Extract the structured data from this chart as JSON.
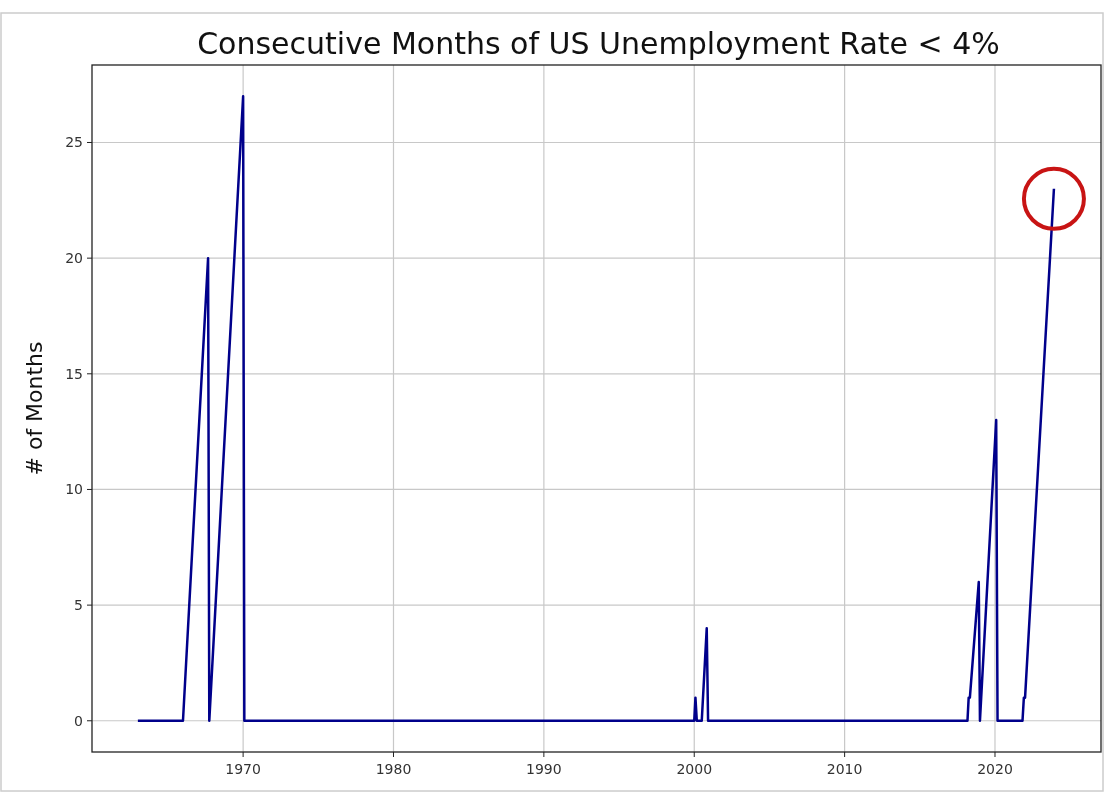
{
  "chart_data": {
    "type": "line",
    "title": "Consecutive Months of US Unemployment Rate < 4%",
    "ylabel": "# of Months",
    "x": [
      1963.0,
      1966.0,
      1967.67,
      1967.75,
      1970.0,
      1970.08,
      2000.0,
      2000.08,
      2000.17,
      2000.5,
      2000.83,
      2000.92,
      2018.17,
      2018.25,
      2018.33,
      2018.92,
      2019.0,
      2020.08,
      2020.17,
      2021.83,
      2021.92,
      2022.0,
      2023.92
    ],
    "series": [
      {
        "color": "#00008b",
        "values": [
          0,
          0,
          20,
          0,
          27,
          0,
          0,
          1,
          0,
          0,
          4,
          0,
          0,
          1,
          1,
          6,
          0,
          13,
          0,
          0,
          1,
          1,
          23
        ]
      }
    ],
    "xlim": [
      1959.95,
      2027.05
    ],
    "xticks": [
      1970,
      1980,
      1990,
      2000,
      2010,
      2020
    ],
    "ylim": [
      -1.35,
      28.35
    ],
    "yticks": [
      0,
      5,
      10,
      15,
      20,
      25
    ],
    "grid": true
  }
}
